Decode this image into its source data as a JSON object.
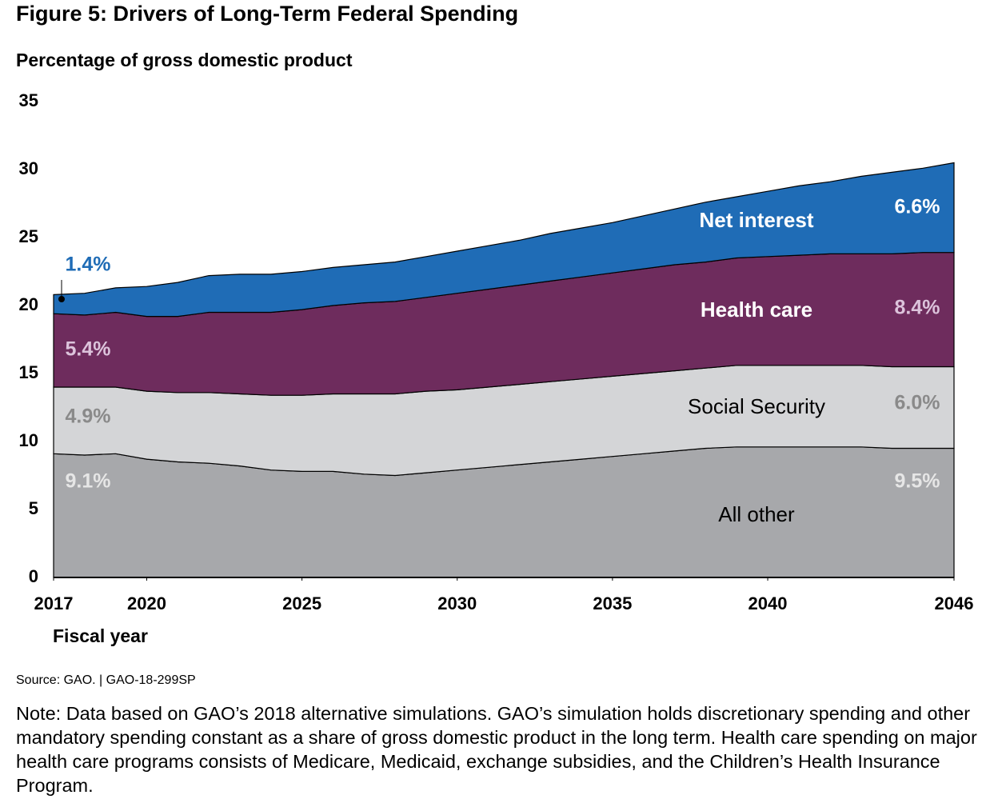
{
  "chart_data": {
    "type": "stacked_area",
    "title": "Figure 5: Drivers of Long-Term Federal Spending",
    "y_label": "Percentage of gross domestic product",
    "x_label": "Fiscal year",
    "source": "Source: GAO.  |  GAO-18-299SP",
    "note": "Note: Data based on GAO’s 2018 alternative simulations. GAO’s simulation holds discretionary spending and other mandatory spending constant as a share of gross domestic product in the long term. Health care spending on major health care programs consists of Medicare, Medicaid, exchange subsidies, and the Children’s Health Insurance Program.",
    "x": [
      2017,
      2018,
      2019,
      2020,
      2021,
      2022,
      2023,
      2024,
      2025,
      2026,
      2027,
      2028,
      2029,
      2030,
      2031,
      2032,
      2033,
      2034,
      2035,
      2036,
      2037,
      2038,
      2039,
      2040,
      2041,
      2042,
      2043,
      2044,
      2045,
      2046
    ],
    "xlim": [
      2017,
      2046
    ],
    "xticks": [
      2017,
      2020,
      2025,
      2030,
      2035,
      2040,
      2046
    ],
    "ylim": [
      0,
      35
    ],
    "yticks": [
      0,
      5,
      10,
      15,
      20,
      25,
      30,
      35
    ],
    "series": [
      {
        "name": "All other",
        "color": "#a7a8ab",
        "values": [
          9.1,
          9.0,
          9.1,
          8.7,
          8.5,
          8.4,
          8.2,
          7.9,
          7.8,
          7.8,
          7.6,
          7.5,
          7.7,
          7.9,
          8.1,
          8.3,
          8.5,
          8.7,
          8.9,
          9.1,
          9.3,
          9.5,
          9.6,
          9.6,
          9.6,
          9.6,
          9.6,
          9.5,
          9.5,
          9.5
        ],
        "value_labels": [
          "9.1%",
          null,
          null,
          null,
          null,
          null,
          null,
          null,
          null,
          null,
          null,
          null,
          null,
          null,
          null,
          null,
          null,
          null,
          null,
          null,
          null,
          null,
          null,
          null,
          null,
          null,
          null,
          null,
          null,
          "9.5%"
        ]
      },
      {
        "name": "Social Security",
        "color": "#d4d5d7",
        "values": [
          4.9,
          5.0,
          4.9,
          5.0,
          5.1,
          5.2,
          5.3,
          5.5,
          5.6,
          5.7,
          5.9,
          6.0,
          6.0,
          5.9,
          5.9,
          5.9,
          5.9,
          5.9,
          5.9,
          5.9,
          5.9,
          5.9,
          6.0,
          6.0,
          6.0,
          6.0,
          6.0,
          6.0,
          6.0,
          6.0
        ],
        "value_labels": [
          "4.9%",
          null,
          null,
          null,
          null,
          null,
          null,
          null,
          null,
          null,
          null,
          null,
          null,
          null,
          null,
          null,
          null,
          null,
          null,
          null,
          null,
          null,
          null,
          null,
          null,
          null,
          null,
          null,
          null,
          "6.0%"
        ]
      },
      {
        "name": "Health care",
        "color": "#6e2c5d",
        "values": [
          5.4,
          5.3,
          5.5,
          5.5,
          5.6,
          5.9,
          6.0,
          6.1,
          6.3,
          6.5,
          6.7,
          6.8,
          6.9,
          7.1,
          7.2,
          7.3,
          7.4,
          7.5,
          7.6,
          7.7,
          7.8,
          7.8,
          7.9,
          8.0,
          8.1,
          8.2,
          8.2,
          8.3,
          8.4,
          8.4
        ],
        "value_labels": [
          "5.4%",
          null,
          null,
          null,
          null,
          null,
          null,
          null,
          null,
          null,
          null,
          null,
          null,
          null,
          null,
          null,
          null,
          null,
          null,
          null,
          null,
          null,
          null,
          null,
          null,
          null,
          null,
          null,
          null,
          "8.4%"
        ]
      },
      {
        "name": "Net interest",
        "color": "#1f6cb6",
        "values": [
          1.4,
          1.6,
          1.8,
          2.2,
          2.5,
          2.7,
          2.8,
          2.8,
          2.8,
          2.8,
          2.8,
          2.9,
          3.0,
          3.1,
          3.2,
          3.3,
          3.5,
          3.6,
          3.7,
          3.9,
          4.1,
          4.4,
          4.5,
          4.8,
          5.1,
          5.3,
          5.7,
          6.0,
          6.2,
          6.6
        ],
        "value_labels": [
          "1.4%",
          null,
          null,
          null,
          null,
          null,
          null,
          null,
          null,
          null,
          null,
          null,
          null,
          null,
          null,
          null,
          null,
          null,
          null,
          null,
          null,
          null,
          null,
          null,
          null,
          null,
          null,
          null,
          null,
          "6.6%"
        ]
      }
    ]
  }
}
